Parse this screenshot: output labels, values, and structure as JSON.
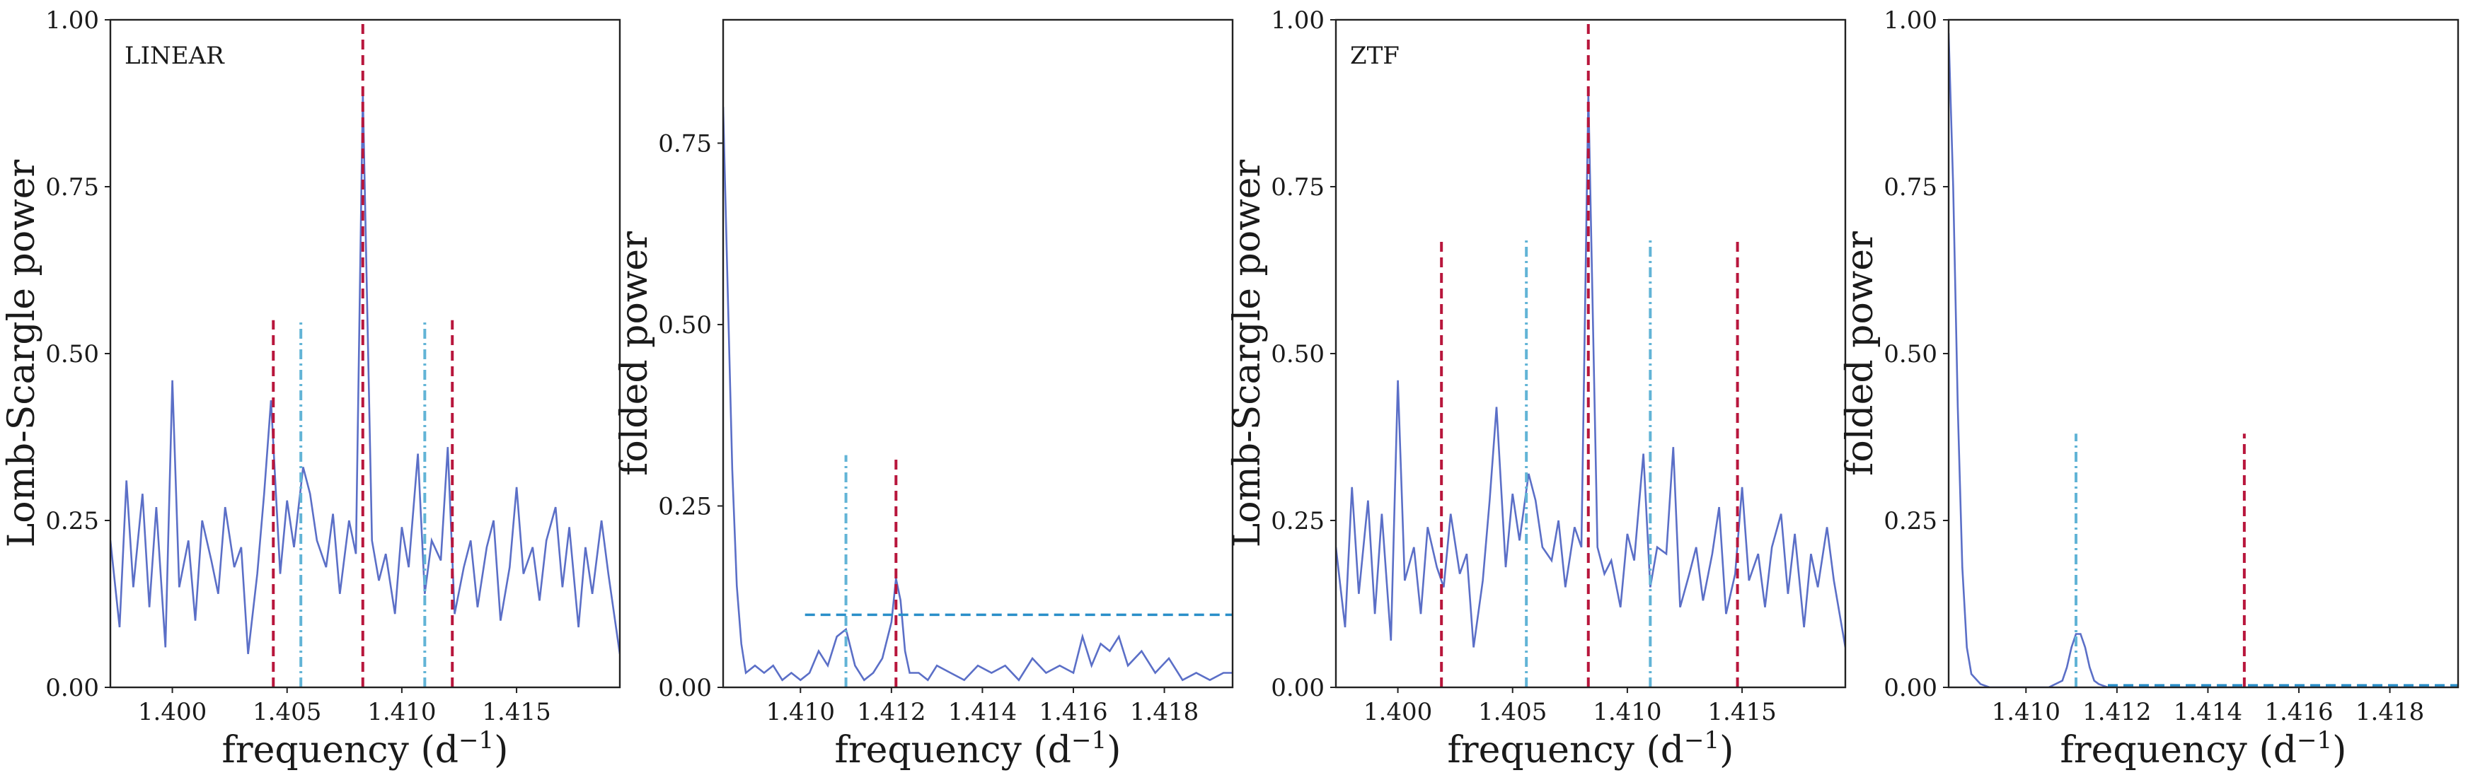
{
  "colors": {
    "curve": "#5b6fc7",
    "red_line": "#b8163c",
    "cyan_line": "#62b4d6",
    "threshold_line": "#2a8fc9",
    "axes": "#222222"
  },
  "chart_data": [
    {
      "type": "line",
      "panel_label": "LINEAR",
      "xlabel": "frequency (d$^{-1}$)",
      "xlabel_main": "frequency (d",
      "xlabel_sup": "−1",
      "xlabel_close": ")",
      "ylabel": "Lomb-Scargle power",
      "xlim": [
        1.3973,
        1.4195
      ],
      "ylim": [
        0,
        1.0
      ],
      "xticks": [
        1.4,
        1.405,
        1.41,
        1.415
      ],
      "xtick_labels": [
        "1.400",
        "1.405",
        "1.410",
        "1.415"
      ],
      "yticks": [
        0,
        0.25,
        0.5,
        0.75,
        1.0
      ],
      "ytick_labels": [
        "0.00",
        "0.25",
        "0.50",
        "0.75",
        "1.00"
      ],
      "series": [
        {
          "x": [
            1.3973,
            1.3977,
            1.398,
            1.3983,
            1.3987,
            1.399,
            1.3993,
            1.3997,
            1.4,
            1.4003,
            1.4007,
            1.401,
            1.4013,
            1.4017,
            1.402,
            1.4023,
            1.4027,
            1.403,
            1.4033,
            1.4037,
            1.404,
            1.4043,
            1.4047,
            1.405,
            1.4053,
            1.4057,
            1.406,
            1.4063,
            1.4067,
            1.407,
            1.4073,
            1.4077,
            1.408,
            1.4083,
            1.4087,
            1.409,
            1.4093,
            1.4097,
            1.41,
            1.4103,
            1.4107,
            1.411,
            1.4113,
            1.4117,
            1.412,
            1.4123,
            1.4127,
            1.413,
            1.4133,
            1.4137,
            1.414,
            1.4143,
            1.4147,
            1.415,
            1.4153,
            1.4157,
            1.416,
            1.4163,
            1.4167,
            1.417,
            1.4173,
            1.4177,
            1.418,
            1.4183,
            1.4187,
            1.419,
            1.4195
          ],
          "y": [
            0.22,
            0.09,
            0.31,
            0.15,
            0.29,
            0.12,
            0.27,
            0.06,
            0.46,
            0.15,
            0.22,
            0.1,
            0.25,
            0.19,
            0.14,
            0.27,
            0.18,
            0.21,
            0.05,
            0.17,
            0.29,
            0.43,
            0.17,
            0.28,
            0.21,
            0.33,
            0.29,
            0.22,
            0.18,
            0.26,
            0.14,
            0.25,
            0.2,
            0.89,
            0.22,
            0.16,
            0.2,
            0.11,
            0.24,
            0.18,
            0.35,
            0.14,
            0.22,
            0.19,
            0.36,
            0.11,
            0.18,
            0.22,
            0.12,
            0.21,
            0.25,
            0.1,
            0.18,
            0.3,
            0.17,
            0.21,
            0.13,
            0.22,
            0.27,
            0.15,
            0.24,
            0.09,
            0.21,
            0.14,
            0.25,
            0.17,
            0.05
          ]
        }
      ],
      "vlines": [
        {
          "x": 1.4044,
          "ymax": 0.55,
          "style": "red"
        },
        {
          "x": 1.4056,
          "ymax": 0.55,
          "style": "cyan"
        },
        {
          "x": 1.4083,
          "ymax": 1.0,
          "style": "red"
        },
        {
          "x": 1.411,
          "ymax": 0.55,
          "style": "cyan"
        },
        {
          "x": 1.4122,
          "ymax": 0.55,
          "style": "red"
        }
      ],
      "hlines": []
    },
    {
      "type": "line",
      "panel_label": "",
      "xlabel": "frequency (d$^{-1}$)",
      "xlabel_main": "frequency (d",
      "xlabel_sup": "−1",
      "xlabel_close": ")",
      "ylabel": "folded power",
      "xlim": [
        1.4083,
        1.4195
      ],
      "ylim": [
        0,
        0.92
      ],
      "xticks": [
        1.41,
        1.412,
        1.414,
        1.416,
        1.418
      ],
      "xtick_labels": [
        "1.410",
        "1.412",
        "1.414",
        "1.416",
        "1.418"
      ],
      "yticks": [
        0,
        0.25,
        0.5,
        0.75
      ],
      "ytick_labels": [
        "0.00",
        "0.25",
        "0.50",
        "0.75"
      ],
      "series": [
        {
          "x": [
            1.4083,
            1.4084,
            1.4085,
            1.4086,
            1.4087,
            1.4088,
            1.409,
            1.4092,
            1.4094,
            1.4096,
            1.4098,
            1.41,
            1.4102,
            1.4104,
            1.4106,
            1.4108,
            1.411,
            1.4112,
            1.4114,
            1.4116,
            1.4118,
            1.412,
            1.4121,
            1.4122,
            1.4123,
            1.4124,
            1.4126,
            1.4128,
            1.413,
            1.4133,
            1.4136,
            1.4139,
            1.4142,
            1.4145,
            1.4148,
            1.4151,
            1.4154,
            1.4157,
            1.416,
            1.4162,
            1.4164,
            1.4166,
            1.4168,
            1.417,
            1.4172,
            1.4175,
            1.4178,
            1.4181,
            1.4184,
            1.4187,
            1.419,
            1.4193,
            1.4195
          ],
          "y": [
            0.8,
            0.55,
            0.3,
            0.14,
            0.06,
            0.02,
            0.03,
            0.02,
            0.03,
            0.01,
            0.02,
            0.01,
            0.02,
            0.05,
            0.03,
            0.07,
            0.08,
            0.03,
            0.01,
            0.02,
            0.04,
            0.09,
            0.15,
            0.12,
            0.05,
            0.02,
            0.02,
            0.01,
            0.03,
            0.02,
            0.01,
            0.03,
            0.02,
            0.03,
            0.01,
            0.04,
            0.02,
            0.03,
            0.02,
            0.07,
            0.03,
            0.06,
            0.05,
            0.07,
            0.03,
            0.05,
            0.02,
            0.04,
            0.01,
            0.02,
            0.01,
            0.02,
            0.02
          ]
        }
      ],
      "vlines": [
        {
          "x": 1.411,
          "ymax": 0.32,
          "style": "cyan"
        },
        {
          "x": 1.4121,
          "ymax": 0.32,
          "style": "red"
        }
      ],
      "hlines": [
        {
          "y": 0.1,
          "xmin": 1.4101,
          "xmax": 1.4195,
          "style": "threshold"
        }
      ]
    },
    {
      "type": "line",
      "panel_label": "ZTF",
      "xlabel": "frequency (d$^{-1}$)",
      "xlabel_main": "frequency (d",
      "xlabel_sup": "−1",
      "xlabel_close": ")",
      "ylabel": "Lomb-Scargle power",
      "xlim": [
        1.3973,
        1.4195
      ],
      "ylim": [
        0,
        1.0
      ],
      "xticks": [
        1.4,
        1.405,
        1.41,
        1.415
      ],
      "xtick_labels": [
        "1.400",
        "1.405",
        "1.410",
        "1.415"
      ],
      "yticks": [
        0,
        0.25,
        0.5,
        0.75,
        1.0
      ],
      "ytick_labels": [
        "0.00",
        "0.25",
        "0.50",
        "0.75",
        "1.00"
      ],
      "series": [
        {
          "x": [
            1.3973,
            1.3977,
            1.398,
            1.3983,
            1.3987,
            1.399,
            1.3993,
            1.3997,
            1.4,
            1.4003,
            1.4007,
            1.401,
            1.4013,
            1.4017,
            1.402,
            1.4023,
            1.4027,
            1.403,
            1.4033,
            1.4037,
            1.404,
            1.4043,
            1.4047,
            1.405,
            1.4053,
            1.4057,
            1.406,
            1.4063,
            1.4067,
            1.407,
            1.4073,
            1.4077,
            1.408,
            1.4083,
            1.4087,
            1.409,
            1.4093,
            1.4097,
            1.41,
            1.4103,
            1.4107,
            1.411,
            1.4113,
            1.4117,
            1.412,
            1.4123,
            1.4127,
            1.413,
            1.4133,
            1.4137,
            1.414,
            1.4143,
            1.4147,
            1.415,
            1.4153,
            1.4157,
            1.416,
            1.4163,
            1.4167,
            1.417,
            1.4173,
            1.4177,
            1.418,
            1.4183,
            1.4187,
            1.419,
            1.4195
          ],
          "y": [
            0.21,
            0.09,
            0.3,
            0.14,
            0.28,
            0.11,
            0.26,
            0.07,
            0.46,
            0.16,
            0.21,
            0.11,
            0.24,
            0.18,
            0.15,
            0.26,
            0.17,
            0.2,
            0.06,
            0.16,
            0.28,
            0.42,
            0.18,
            0.29,
            0.22,
            0.32,
            0.28,
            0.21,
            0.19,
            0.25,
            0.15,
            0.24,
            0.21,
            0.89,
            0.21,
            0.17,
            0.19,
            0.12,
            0.23,
            0.19,
            0.35,
            0.15,
            0.21,
            0.2,
            0.36,
            0.12,
            0.17,
            0.21,
            0.13,
            0.2,
            0.27,
            0.11,
            0.17,
            0.3,
            0.16,
            0.2,
            0.12,
            0.21,
            0.26,
            0.14,
            0.23,
            0.09,
            0.2,
            0.15,
            0.24,
            0.16,
            0.06
          ]
        }
      ],
      "vlines": [
        {
          "x": 1.4019,
          "ymax": 0.67,
          "style": "red"
        },
        {
          "x": 1.4056,
          "ymax": 0.67,
          "style": "cyan"
        },
        {
          "x": 1.4083,
          "ymax": 1.0,
          "style": "red"
        },
        {
          "x": 1.411,
          "ymax": 0.67,
          "style": "cyan"
        },
        {
          "x": 1.4148,
          "ymax": 0.67,
          "style": "red"
        }
      ],
      "hlines": []
    },
    {
      "type": "line",
      "panel_label": "",
      "xlabel": "frequency (d$^{-1}$)",
      "xlabel_main": "frequency (d",
      "xlabel_sup": "−1",
      "xlabel_close": ")",
      "ylabel": "folded power",
      "xlim": [
        1.4083,
        1.4195
      ],
      "ylim": [
        0,
        1.0
      ],
      "xticks": [
        1.41,
        1.412,
        1.414,
        1.416,
        1.418
      ],
      "xtick_labels": [
        "1.410",
        "1.412",
        "1.414",
        "1.416",
        "1.418"
      ],
      "yticks": [
        0,
        0.25,
        0.5,
        0.75,
        1.0
      ],
      "ytick_labels": [
        "0.00",
        "0.25",
        "0.50",
        "0.75",
        "1.00"
      ],
      "series": [
        {
          "x": [
            1.4083,
            1.4084,
            1.4085,
            1.4086,
            1.4087,
            1.4088,
            1.409,
            1.4092,
            1.4095,
            1.41,
            1.4105,
            1.4108,
            1.4109,
            1.411,
            1.4111,
            1.4112,
            1.4113,
            1.4114,
            1.4115,
            1.4116,
            1.4118,
            1.4122,
            1.413,
            1.414,
            1.415,
            1.416,
            1.417,
            1.418,
            1.419,
            1.4195
          ],
          "y": [
            0.98,
            0.75,
            0.42,
            0.18,
            0.06,
            0.02,
            0.005,
            0.0,
            0.0,
            0.0,
            0.0,
            0.01,
            0.03,
            0.06,
            0.08,
            0.08,
            0.06,
            0.03,
            0.01,
            0.005,
            0.0,
            0.0,
            0.0,
            0.0,
            0.0,
            0.0,
            0.0,
            0.0,
            0.0,
            0.0
          ]
        }
      ],
      "vlines": [
        {
          "x": 1.4111,
          "ymax": 0.38,
          "style": "cyan"
        },
        {
          "x": 1.4148,
          "ymax": 0.38,
          "style": "red"
        }
      ],
      "hlines": [
        {
          "y": 0.003,
          "xmin": 1.4118,
          "xmax": 1.4195,
          "style": "threshold"
        }
      ]
    }
  ]
}
